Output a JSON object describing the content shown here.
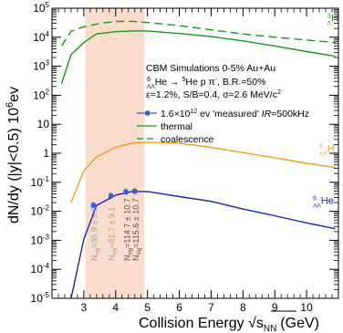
{
  "chart_data": {
    "type": "line",
    "xlabel": "Collision Energy",
    "xlabel_math": "√s",
    "xlabel_sub": "NN",
    "xlabel_unit": "(GeV)",
    "ylabel": "dN/dy (|y|<0.5) 10",
    "ylabel_sup": "6",
    "ylabel_unit": "ev",
    "xlim": [
      2,
      11
    ],
    "ylim": [
      1e-05,
      100000.0
    ],
    "y_log_scale": true,
    "x_ticks": [
      3,
      4,
      5,
      6,
      7,
      8,
      9,
      10
    ],
    "y_ticks": [
      {
        "value": 1e-05,
        "base": "10",
        "exp": "-5"
      },
      {
        "value": 0.0001,
        "base": "10",
        "exp": "-4"
      },
      {
        "value": 0.001,
        "base": "10",
        "exp": "-3"
      },
      {
        "value": 0.01,
        "base": "10",
        "exp": "-2"
      },
      {
        "value": 0.1,
        "base": "10",
        "exp": "-1"
      },
      {
        "value": 1,
        "base": "1",
        "exp": ""
      },
      {
        "value": 10,
        "base": "10",
        "exp": ""
      },
      {
        "value": 100,
        "base": "10",
        "exp": "2"
      },
      {
        "value": 1000,
        "base": "10",
        "exp": "3"
      },
      {
        "value": 10000,
        "base": "10",
        "exp": "4"
      },
      {
        "value": 100000,
        "base": "10",
        "exp": "5"
      }
    ],
    "shaded_band": {
      "x": [
        3.05,
        4.9
      ],
      "color": "#f9dccb"
    },
    "series": [
      {
        "key": "he3l_coal",
        "color": "#1a9a1a",
        "style": "dashed",
        "x": [
          2.3,
          2.6,
          3.0,
          3.5,
          4.0,
          4.5,
          5.0,
          6.0,
          7.0,
          8.0,
          9.0,
          10.0,
          10.9
        ],
        "y": [
          5000,
          16000,
          23000,
          30000,
          35000,
          35500,
          32000,
          25000,
          18000,
          13000,
          10000,
          8000,
          6500
        ]
      },
      {
        "key": "he3l_thermal",
        "color": "#1a9a1a",
        "style": "solid",
        "x": [
          2.3,
          2.6,
          3.0,
          3.4,
          4.0,
          4.5,
          5.0,
          6.0,
          7.0,
          8.0,
          9.0,
          10.0,
          10.9
        ],
        "y": [
          250,
          2500,
          6500,
          13000,
          15500,
          16500,
          16500,
          13500,
          10500,
          7500,
          5000,
          3200,
          2200
        ]
      },
      {
        "key": "he5l",
        "color": "#f0a020",
        "style": "solid",
        "x": [
          2.6,
          3.0,
          3.4,
          4.0,
          4.5,
          5.0,
          6.0,
          7.0,
          8.0,
          9.0,
          10.0,
          10.9
        ],
        "y": [
          0.02,
          0.25,
          0.75,
          1.6,
          2.2,
          2.4,
          2.2,
          1.6,
          1.05,
          0.7,
          0.45,
          0.32
        ]
      },
      {
        "key": "he6ll",
        "color": "#1a26b0",
        "style": "solid",
        "x": [
          2.6,
          3.0,
          3.4,
          4.0,
          4.5,
          5.0,
          6.0,
          7.0,
          8.0,
          9.0,
          10.0,
          10.9
        ],
        "y": [
          1e-05,
          0.0011,
          0.016,
          0.036,
          0.048,
          0.048,
          0.032,
          0.022,
          0.012,
          0.007,
          0.004,
          0.0025
        ]
      }
    ],
    "measured_points": {
      "color": "#2e5fd8",
      "x": [
        3.3,
        3.85,
        4.32,
        4.6
      ],
      "y": [
        0.016,
        0.034,
        0.047,
        0.049
      ]
    },
    "curve_labels": [
      {
        "base": "H",
        "pre_sup": "3",
        "pre_sub": "Λ",
        "color": "#1a9a1a",
        "x": 10.65,
        "y": 35000
      },
      {
        "base": "H",
        "pre_sup": "5",
        "pre_sub": "ΛΛ",
        "color": "#f0a020",
        "x": 10.4,
        "y": 1.1
      },
      {
        "base": "He",
        "pre_sup": "6",
        "pre_sub": "ΛΛ",
        "color": "#1a26b0",
        "x": 10.2,
        "y": 0.018
      }
    ],
    "nsig_labels": [
      {
        "text": "N",
        "sub": "sig",
        "value": "=35.9 ± 5.9",
        "color": "#a0a0a0",
        "x": 3.33
      },
      {
        "text": "N",
        "sub": "sig",
        "value": "=81.7 ± 9.1",
        "color": "#a0a0a0",
        "x": 3.88
      },
      {
        "text": "N",
        "sub": "sig",
        "value": "=114.7 ± 10.7",
        "color": "#555555",
        "x": 4.37
      },
      {
        "text": "N",
        "sub": "sig",
        "value": "=115.6 ± 10.7",
        "color": "#555555",
        "x": 4.63
      }
    ],
    "annotation": {
      "line1": "CBM Simulations 0-5% Au+Au",
      "line2_sup": "6",
      "line2_sub": "ΛΛ",
      "line2_a": "He → ",
      "line2_sup2": "5",
      "line2_b": "He p π",
      "line2_sup3": "-",
      "line2_c": ", B.R.=50%",
      "line3": "ε=1.2%, S/B=0.4, σ=2.6 MeV/c",
      "line3_sup": "2"
    },
    "legend": [
      {
        "label": "1.6×10",
        "sup": "12",
        "rest": " ev 'measured' ",
        "ital": "IR",
        "tail": "=500kHz",
        "color": "#2e5fd8",
        "kind": "marker"
      },
      {
        "label": "thermal",
        "color": "#1a9a1a",
        "kind": "solid"
      },
      {
        "label": "coalescence",
        "color": "#1a9a1a",
        "kind": "dashed"
      }
    ]
  }
}
